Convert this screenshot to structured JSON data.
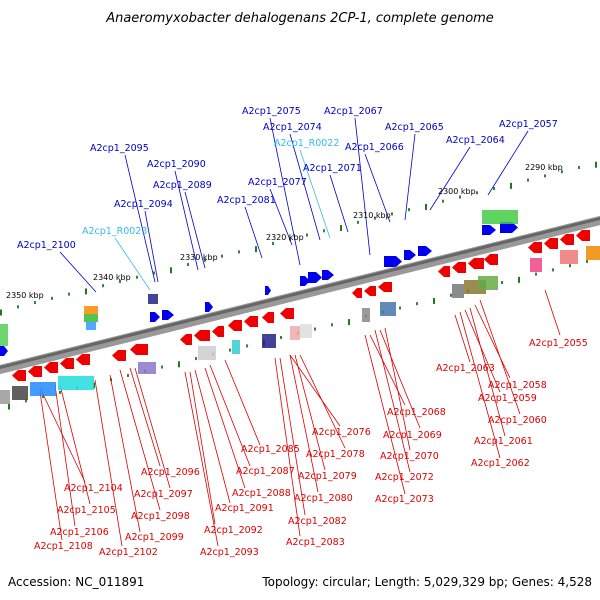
{
  "title": "Anaeromyxobacter dehalogenans 2CP-1, complete genome",
  "footer": {
    "accession": "Accession: NC_011891",
    "topology": "Topology: circular; Length: 5,029,329 bp; Genes: 4,528"
  },
  "kbp_labels": [
    "2290 kbp",
    "2300 kbp",
    "2310 kbp",
    "2320 kbp",
    "2330 kbp",
    "2340 kbp",
    "2350 kbp"
  ],
  "colors": {
    "forward_label": "#0000cc",
    "rna_label": "#33bbee",
    "reverse_label": "#dd0000",
    "forward_gene": "#0000ee",
    "reverse_gene": "#ee0000",
    "backbone": "#888888"
  },
  "top_labels": [
    {
      "text": "A2cp1_2075",
      "type": "gene"
    },
    {
      "text": "A2cp1_2067",
      "type": "gene"
    },
    {
      "text": "A2cp1_2074",
      "type": "gene"
    },
    {
      "text": "A2cp1_2065",
      "type": "gene"
    },
    {
      "text": "A2cp1_2057",
      "type": "gene"
    },
    {
      "text": "A2cp1_R0022",
      "type": "rna"
    },
    {
      "text": "A2cp1_2066",
      "type": "gene"
    },
    {
      "text": "A2cp1_2064",
      "type": "gene"
    },
    {
      "text": "A2cp1_2095",
      "type": "gene"
    },
    {
      "text": "A2cp1_2090",
      "type": "gene"
    },
    {
      "text": "A2cp1_2071",
      "type": "gene"
    },
    {
      "text": "A2cp1_2089",
      "type": "gene"
    },
    {
      "text": "A2cp1_2077",
      "type": "gene"
    },
    {
      "text": "A2cp1_2081",
      "type": "gene"
    },
    {
      "text": "A2cp1_2094",
      "type": "gene"
    },
    {
      "text": "A2cp1_R0023",
      "type": "rna"
    },
    {
      "text": "A2cp1_2100",
      "type": "gene"
    }
  ],
  "bottom_labels": [
    "A2cp1_2055",
    "A2cp1_2063",
    "A2cp1_2058",
    "A2cp1_2059",
    "A2cp1_2068",
    "A2cp1_2060",
    "A2cp1_2076",
    "A2cp1_2069",
    "A2cp1_2061",
    "A2cp1_2085",
    "A2cp1_2078",
    "A2cp1_2070",
    "A2cp1_2062",
    "A2cp1_2096",
    "A2cp1_2087",
    "A2cp1_2079",
    "A2cp1_2072",
    "A2cp1_2104",
    "A2cp1_2097",
    "A2cp1_2088",
    "A2cp1_2080",
    "A2cp1_2073",
    "A2cp1_2105",
    "A2cp1_2091",
    "A2cp1_2098",
    "A2cp1_2082",
    "A2cp1_2106",
    "A2cp1_2092",
    "A2cp1_2099",
    "A2cp1_2083",
    "A2cp1_2108",
    "A2cp1_2102",
    "A2cp1_2093"
  ]
}
